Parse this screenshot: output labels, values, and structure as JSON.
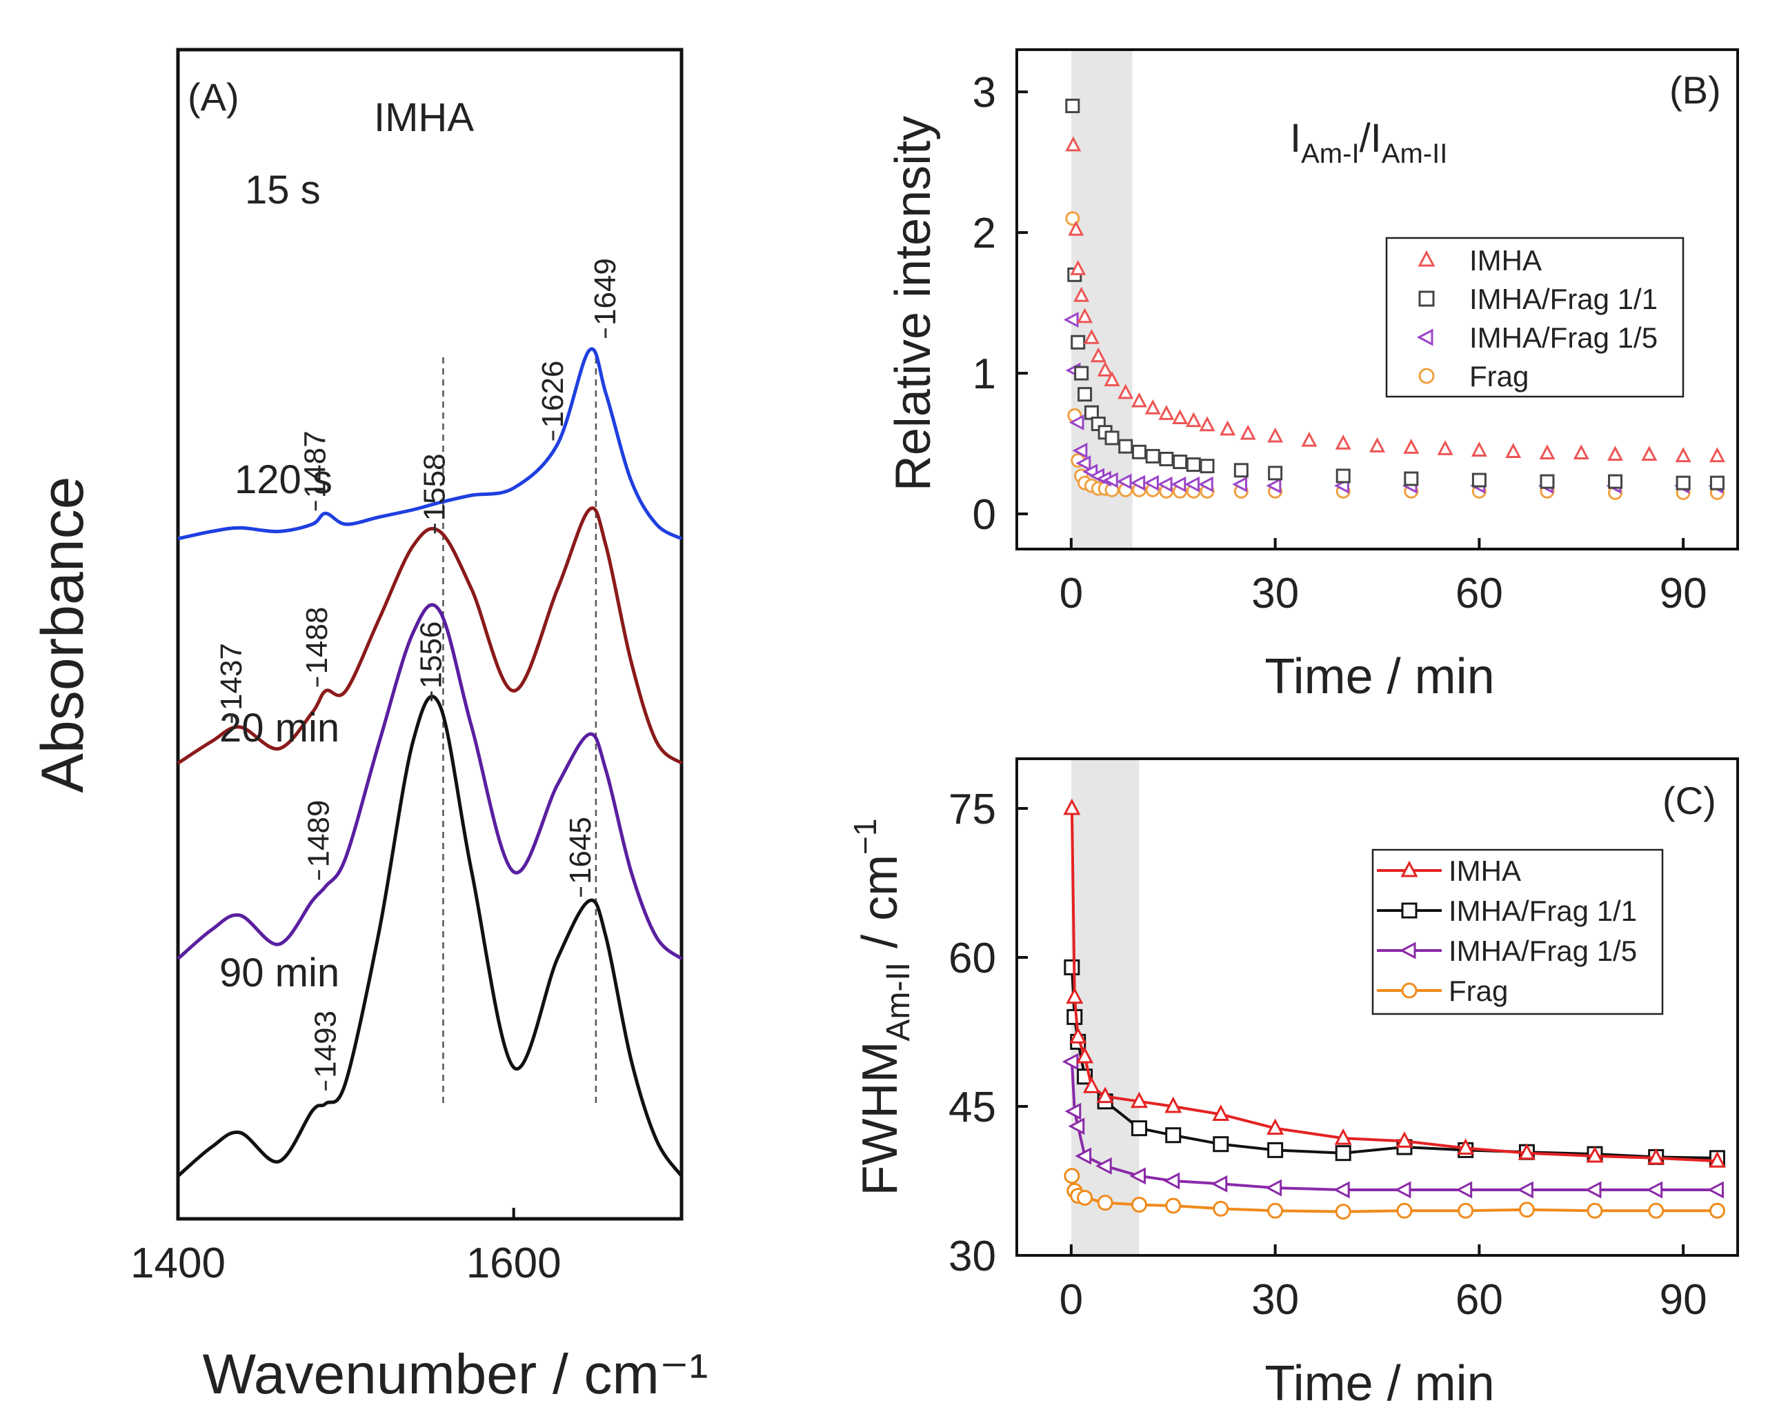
{
  "chart_data": [
    {
      "panel": "(A)",
      "type": "line",
      "title": "IMHA",
      "xlabel": "Wavenumber / cm⁻¹",
      "ylabel": "Absorbance",
      "xlim": [
        1400,
        1700
      ],
      "xticks": [
        "1400",
        "1600"
      ],
      "x": [
        1400,
        1420,
        1437,
        1460,
        1480,
        1488,
        1500,
        1520,
        1540,
        1556,
        1575,
        1600,
        1626,
        1645,
        1655,
        1670,
        1685,
        1700
      ],
      "series": [
        {
          "name": "15 s",
          "color": "#1f3fe0",
          "offset": 0.88,
          "values": [
            0.0,
            0.01,
            0.015,
            0.01,
            0.02,
            0.035,
            0.02,
            0.03,
            0.04,
            0.05,
            0.06,
            0.07,
            0.13,
            0.26,
            0.2,
            0.08,
            0.02,
            0.0
          ]
        },
        {
          "name": "120 s",
          "color": "#8b1a1a",
          "offset": 0.57,
          "values": [
            0.0,
            0.03,
            0.05,
            0.02,
            0.07,
            0.1,
            0.1,
            0.2,
            0.3,
            0.32,
            0.24,
            0.1,
            0.24,
            0.35,
            0.3,
            0.14,
            0.03,
            0.0
          ]
        },
        {
          "name": "20 min",
          "color": "#5a1fa0",
          "offset": 0.3,
          "values": [
            0.0,
            0.04,
            0.06,
            0.02,
            0.08,
            0.1,
            0.14,
            0.3,
            0.45,
            0.48,
            0.32,
            0.12,
            0.24,
            0.31,
            0.26,
            0.12,
            0.03,
            0.0
          ]
        },
        {
          "name": "90 min",
          "color": "#111111",
          "offset": 0.0,
          "values": [
            0.0,
            0.04,
            0.06,
            0.02,
            0.09,
            0.1,
            0.13,
            0.34,
            0.6,
            0.65,
            0.42,
            0.15,
            0.3,
            0.38,
            0.33,
            0.16,
            0.05,
            0.0
          ]
        }
      ],
      "peak_labels": [
        {
          "spectrum": "15 s",
          "text": "1487",
          "x": 1487
        },
        {
          "spectrum": "15 s",
          "text": "1626",
          "x": 1626
        },
        {
          "spectrum": "15 s",
          "text": "1649",
          "x": 1649
        },
        {
          "spectrum": "120 s",
          "text": "1437",
          "x": 1437
        },
        {
          "spectrum": "120 s",
          "text": "1488",
          "x": 1488
        },
        {
          "spectrum": "120 s",
          "text": "1558",
          "x": 1558
        },
        {
          "spectrum": "20 min",
          "text": "1489",
          "x": 1489
        },
        {
          "spectrum": "90 min",
          "text": "1556",
          "x": 1556
        },
        {
          "spectrum": "90 min",
          "text": "1493",
          "x": 1493
        },
        {
          "spectrum": "90 min",
          "text": "1645",
          "x": 1645
        }
      ],
      "guide_lines": [
        1558,
        1649
      ]
    },
    {
      "panel": "(B)",
      "type": "scatter",
      "annotation": "I_Am-I/I_Am-II",
      "annotation_main": "I",
      "annotation_sub1": "Am-I",
      "annotation_slash": "/I",
      "annotation_sub2": "Am-II",
      "xlabel": "Time / min",
      "ylabel": "Relative intensity",
      "xlim": [
        -8,
        98
      ],
      "ylim": [
        -0.25,
        3.3
      ],
      "xticks": [
        0,
        30,
        60,
        90
      ],
      "yticks": [
        0,
        1,
        2,
        3
      ],
      "shaded_region": [
        0,
        9
      ],
      "legend_position": "upper-right",
      "series": [
        {
          "name": "IMHA",
          "color": "#ee5555",
          "marker": "triangle-up",
          "x": [
            0.3,
            0.7,
            1,
            1.5,
            2,
            3,
            4,
            5,
            6,
            8,
            10,
            12,
            14,
            16,
            18,
            20,
            23,
            26,
            30,
            35,
            40,
            45,
            50,
            55,
            60,
            65,
            70,
            75,
            80,
            85,
            90,
            95
          ],
          "values": [
            2.62,
            2.02,
            1.74,
            1.55,
            1.4,
            1.25,
            1.12,
            1.02,
            0.95,
            0.86,
            0.8,
            0.75,
            0.71,
            0.68,
            0.66,
            0.63,
            0.6,
            0.57,
            0.55,
            0.52,
            0.5,
            0.48,
            0.47,
            0.46,
            0.45,
            0.44,
            0.43,
            0.43,
            0.42,
            0.42,
            0.41,
            0.41
          ]
        },
        {
          "name": "IMHA/Frag 1/1",
          "color": "#444444",
          "marker": "square",
          "x": [
            0.2,
            0.5,
            1,
            1.5,
            2,
            3,
            4,
            5,
            6,
            8,
            10,
            12,
            14,
            16,
            18,
            20,
            25,
            30,
            40,
            50,
            60,
            70,
            80,
            90,
            95
          ],
          "values": [
            2.9,
            1.7,
            1.22,
            1.0,
            0.85,
            0.72,
            0.64,
            0.58,
            0.54,
            0.48,
            0.44,
            0.41,
            0.39,
            0.37,
            0.35,
            0.34,
            0.31,
            0.29,
            0.27,
            0.25,
            0.24,
            0.23,
            0.23,
            0.22,
            0.22
          ]
        },
        {
          "name": "IMHA/Frag 1/5",
          "color": "#9a44c8",
          "marker": "triangle-left",
          "x": [
            0.2,
            0.5,
            1,
            1.5,
            2,
            3,
            4,
            5,
            6,
            8,
            10,
            12,
            14,
            16,
            18,
            20,
            25,
            30,
            40,
            50,
            60,
            70,
            80,
            90,
            95
          ],
          "values": [
            1.38,
            1.02,
            0.65,
            0.45,
            0.36,
            0.3,
            0.27,
            0.25,
            0.24,
            0.23,
            0.22,
            0.22,
            0.21,
            0.21,
            0.21,
            0.21,
            0.21,
            0.2,
            0.2,
            0.2,
            0.2,
            0.2,
            0.2,
            0.2,
            0.2
          ]
        },
        {
          "name": "Frag",
          "color": "#f0a040",
          "marker": "circle",
          "x": [
            0.2,
            0.5,
            1,
            1.5,
            2,
            3,
            4,
            5,
            6,
            8,
            10,
            12,
            14,
            16,
            18,
            20,
            25,
            30,
            40,
            50,
            60,
            70,
            80,
            90,
            95
          ],
          "values": [
            2.1,
            0.7,
            0.38,
            0.27,
            0.22,
            0.2,
            0.18,
            0.18,
            0.17,
            0.17,
            0.17,
            0.17,
            0.16,
            0.16,
            0.16,
            0.16,
            0.16,
            0.16,
            0.16,
            0.16,
            0.16,
            0.16,
            0.15,
            0.15,
            0.15
          ]
        }
      ]
    },
    {
      "panel": "(C)",
      "type": "line",
      "xlabel": "Time / min",
      "ylabel": "FWHM_Am-II / cm⁻¹",
      "ylabel_main": "FWHM",
      "ylabel_sub": "Am-II",
      "ylabel_unit": " / cm",
      "ylabel_sup": "−1",
      "xlim": [
        -8,
        98
      ],
      "ylim": [
        30,
        80
      ],
      "xticks": [
        0,
        30,
        60,
        90
      ],
      "yticks": [
        30,
        45,
        60,
        75
      ],
      "shaded_region": [
        0,
        10
      ],
      "legend_position": "upper-right",
      "series": [
        {
          "name": "IMHA",
          "color": "#e52222",
          "marker": "triangle-up",
          "x": [
            0.1,
            0.5,
            1,
            2,
            3,
            5,
            10,
            15,
            22,
            30,
            40,
            49,
            58,
            67,
            77,
            86,
            95
          ],
          "values": [
            75,
            56,
            52,
            50,
            47,
            46,
            45.5,
            45,
            44.2,
            42.8,
            41.8,
            41.5,
            40.8,
            40.3,
            40,
            39.8,
            39.5
          ]
        },
        {
          "name": "IMHA/Frag 1/1",
          "color": "#111111",
          "marker": "square",
          "x": [
            0.1,
            0.5,
            1,
            2,
            5,
            10,
            15,
            22,
            30,
            40,
            49,
            58,
            67,
            77,
            86,
            95
          ],
          "values": [
            59,
            54,
            51.5,
            48,
            45.5,
            42.8,
            42.1,
            41.2,
            40.6,
            40.3,
            40.9,
            40.6,
            40.4,
            40.2,
            39.9,
            39.8
          ]
        },
        {
          "name": "IMHA/Frag 1/5",
          "color": "#8a2aa8",
          "marker": "triangle-left",
          "x": [
            0.1,
            0.5,
            1,
            2,
            5,
            10,
            15,
            22,
            30,
            40,
            49,
            58,
            67,
            77,
            86,
            95
          ],
          "values": [
            49.5,
            44.5,
            43,
            40,
            39,
            38,
            37.5,
            37.2,
            36.8,
            36.6,
            36.6,
            36.6,
            36.6,
            36.6,
            36.6,
            36.6
          ]
        },
        {
          "name": "Frag",
          "color": "#f08a1a",
          "marker": "circle",
          "x": [
            0.1,
            0.5,
            1,
            2,
            5,
            10,
            15,
            22,
            30,
            40,
            49,
            58,
            67,
            77,
            86,
            95
          ],
          "values": [
            38,
            36.5,
            36,
            35.8,
            35.3,
            35.1,
            35,
            34.7,
            34.5,
            34.4,
            34.5,
            34.5,
            34.6,
            34.5,
            34.5,
            34.5
          ]
        }
      ]
    }
  ]
}
